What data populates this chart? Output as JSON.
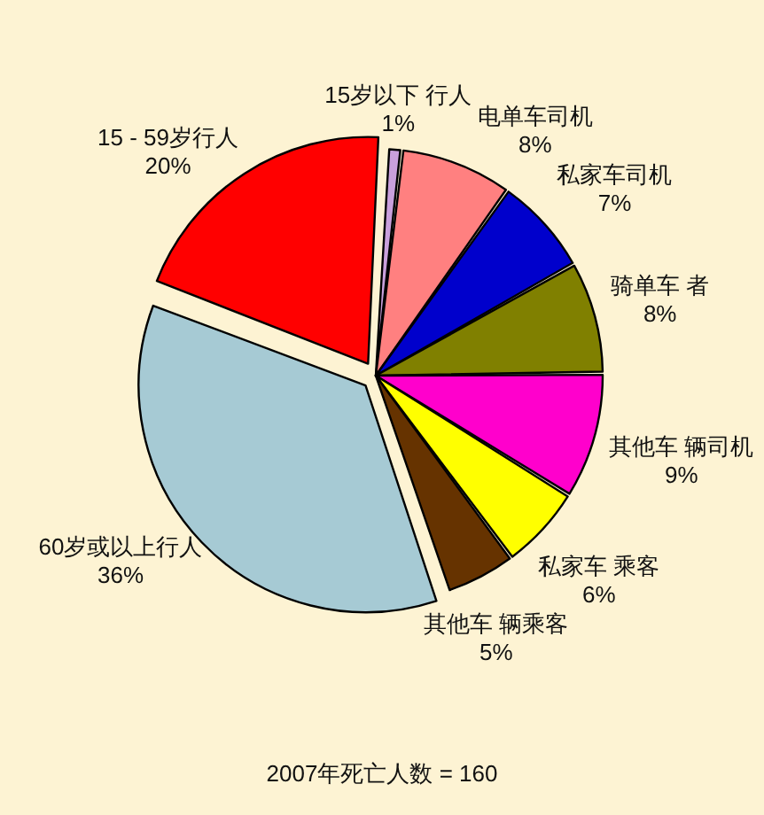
{
  "chart_data": {
    "type": "pie",
    "title": "2007年死亡人数 = 160",
    "categories": [
      "15岁以下 行人",
      "电单车司机",
      "私家车司机",
      "骑单车 者",
      "其他车 辆司机",
      "私家车 乘客",
      "其他车 辆乘客",
      "60岁或以上行人",
      "15 - 59岁行人"
    ],
    "values": [
      1,
      8,
      7,
      8,
      9,
      6,
      5,
      36,
      20
    ],
    "value_labels": [
      "1%",
      "8%",
      "7%",
      "8%",
      "9%",
      "6%",
      "5%",
      "36%",
      "20%"
    ],
    "colors": [
      "#c9a0dc",
      "#ff8080",
      "#0000cc",
      "#808000",
      "#ff00cc",
      "#ffff00",
      "#663300",
      "#a6cad4",
      "#ff0000"
    ],
    "legend": false
  }
}
